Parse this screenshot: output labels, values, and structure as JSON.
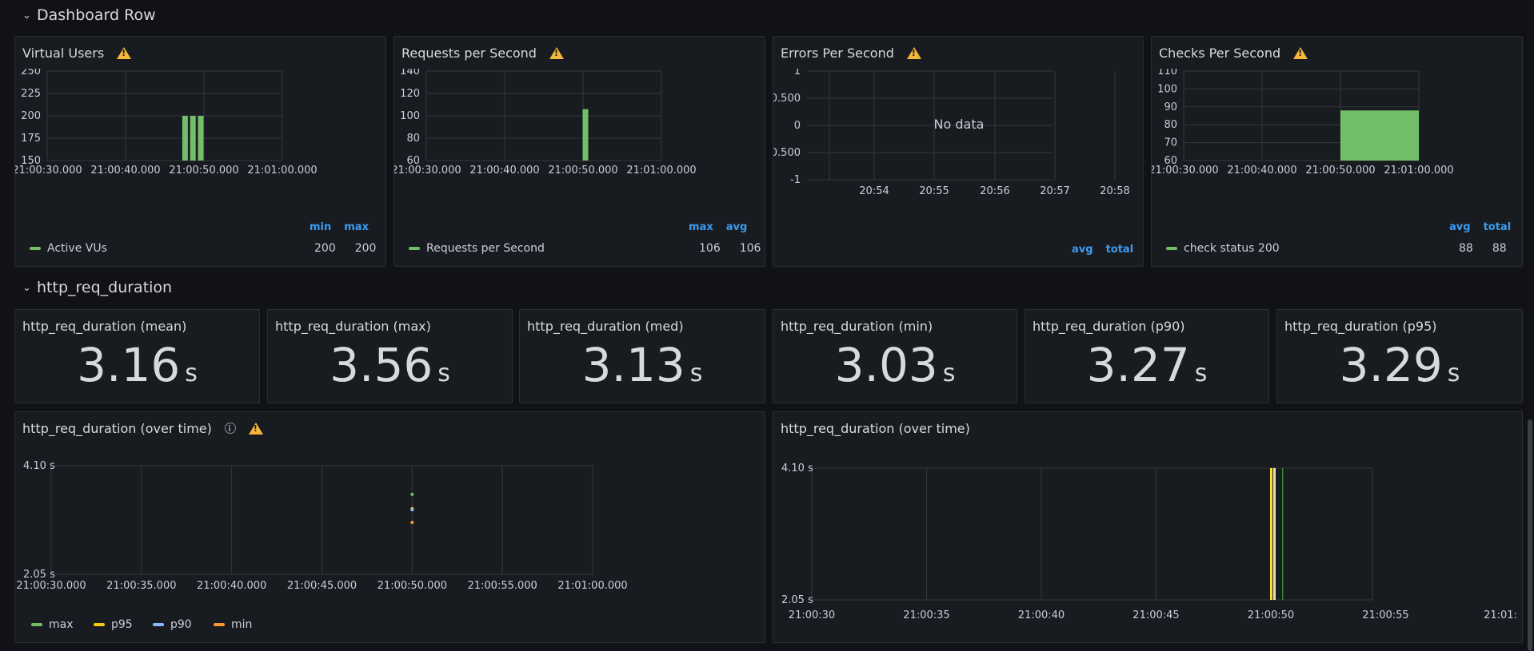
{
  "rows": {
    "dashboard": "Dashboard Row",
    "http": "http_req_duration"
  },
  "panels": {
    "vus": {
      "title": "Virtual Users",
      "legend_headers": [
        "min",
        "max"
      ],
      "legend_series": "Active VUs",
      "legend_values": [
        "200",
        "200"
      ]
    },
    "rps": {
      "title": "Requests per Second",
      "legend_headers": [
        "max",
        "avg"
      ],
      "legend_series": "Requests per Second",
      "legend_values": [
        "106",
        "106"
      ]
    },
    "eps": {
      "title": "Errors Per Second",
      "no_data": "No data",
      "legend_headers": [
        "avg",
        "total"
      ]
    },
    "cps": {
      "title": "Checks Per Second",
      "legend_headers": [
        "avg",
        "total"
      ],
      "legend_series": "check status 200",
      "legend_values": [
        "88",
        "88"
      ]
    },
    "dur_left": {
      "title": "http_req_duration (over time)",
      "legend": [
        "max",
        "p95",
        "p90",
        "min"
      ]
    },
    "dur_right": {
      "title": "http_req_duration (over time)"
    }
  },
  "stats": [
    {
      "title": "http_req_duration (mean)",
      "value": "3.16",
      "unit": "s"
    },
    {
      "title": "http_req_duration (max)",
      "value": "3.56",
      "unit": "s"
    },
    {
      "title": "http_req_duration (med)",
      "value": "3.13",
      "unit": "s"
    },
    {
      "title": "http_req_duration (min)",
      "value": "3.03",
      "unit": "s"
    },
    {
      "title": "http_req_duration (p90)",
      "value": "3.27",
      "unit": "s"
    },
    {
      "title": "http_req_duration (p95)",
      "value": "3.29",
      "unit": "s"
    }
  ],
  "colors": {
    "green": "#73bf69",
    "yellow": "#fade2a",
    "orange_yellow": "#f2cc0c",
    "blue": "#5794f2",
    "cyan": "#8ab8ff",
    "orange": "#ff9830",
    "legend_header": "#3d9cf0",
    "warning": "#f5b73b"
  },
  "chart_data": [
    {
      "id": "vus",
      "type": "bar",
      "title": "Virtual Users",
      "x_ticks": [
        "21:00:30.000",
        "21:00:40.000",
        "21:00:50.000",
        "21:01:00.000"
      ],
      "y_ticks": [
        "150",
        "175",
        "200",
        "225",
        "250"
      ],
      "ylim": [
        150,
        250
      ],
      "series": [
        {
          "name": "Active VUs",
          "values": [
            {
              "t": "21:00:48",
              "v": 200
            },
            {
              "t": "21:00:49",
              "v": 200
            },
            {
              "t": "21:00:50",
              "v": 200
            }
          ]
        }
      ]
    },
    {
      "id": "rps",
      "type": "bar",
      "title": "Requests per Second",
      "x_ticks": [
        "21:00:30.000",
        "21:00:40.000",
        "21:00:50.000",
        "21:01:00.000"
      ],
      "y_ticks": [
        "60",
        "80",
        "100",
        "120",
        "140"
      ],
      "ylim": [
        60,
        140
      ],
      "series": [
        {
          "name": "Requests per Second",
          "values": [
            {
              "t": "21:00:50",
              "v": 106
            }
          ]
        }
      ]
    },
    {
      "id": "eps",
      "type": "line",
      "title": "Errors Per Second",
      "x_ticks": [
        "20:54",
        "20:55",
        "20:56",
        "20:57",
        "20:58"
      ],
      "y_ticks": [
        "1",
        "0.500",
        "0",
        "-0.500",
        "-1"
      ],
      "ylim": [
        -1,
        1
      ],
      "series": []
    },
    {
      "id": "cps",
      "type": "area",
      "title": "Checks Per Second",
      "x_ticks": [
        "21:00:30.000",
        "21:00:40.000",
        "21:00:50.000",
        "21:01:00.000"
      ],
      "y_ticks": [
        "60",
        "70",
        "80",
        "90",
        "100",
        "110"
      ],
      "ylim": [
        60,
        110
      ],
      "series": [
        {
          "name": "check status 200",
          "values": [
            {
              "t": "21:00:50",
              "v": 88
            },
            {
              "t": "21:01:00",
              "v": 88
            }
          ]
        }
      ]
    },
    {
      "id": "dur_left",
      "type": "scatter",
      "title": "http_req_duration (over time)",
      "x_ticks": [
        "21:00:30.000",
        "21:00:35.000",
        "21:00:40.000",
        "21:00:45.000",
        "21:00:50.000",
        "21:00:55.000",
        "21:01:00.000"
      ],
      "y_ticks": [
        "4.10 s",
        "2.05 s"
      ],
      "ylim": [
        2.05,
        4.1
      ],
      "series": [
        {
          "name": "max",
          "values": [
            {
              "t": "21:00:50",
              "v": 3.56
            }
          ]
        },
        {
          "name": "p95",
          "values": [
            {
              "t": "21:00:50",
              "v": 3.29
            }
          ]
        },
        {
          "name": "p90",
          "values": [
            {
              "t": "21:00:50",
              "v": 3.27
            }
          ]
        },
        {
          "name": "min",
          "values": [
            {
              "t": "21:00:50",
              "v": 3.03
            }
          ]
        }
      ]
    },
    {
      "id": "dur_right",
      "type": "bar",
      "title": "http_req_duration (over time)",
      "x_ticks": [
        "21:00:30",
        "21:00:35",
        "21:00:40",
        "21:00:45",
        "21:00:50",
        "21:00:55",
        "21:01:"
      ],
      "y_ticks": [
        "4.10 s",
        "2.05 s"
      ],
      "ylim": [
        2.05,
        4.1
      ]
    }
  ]
}
